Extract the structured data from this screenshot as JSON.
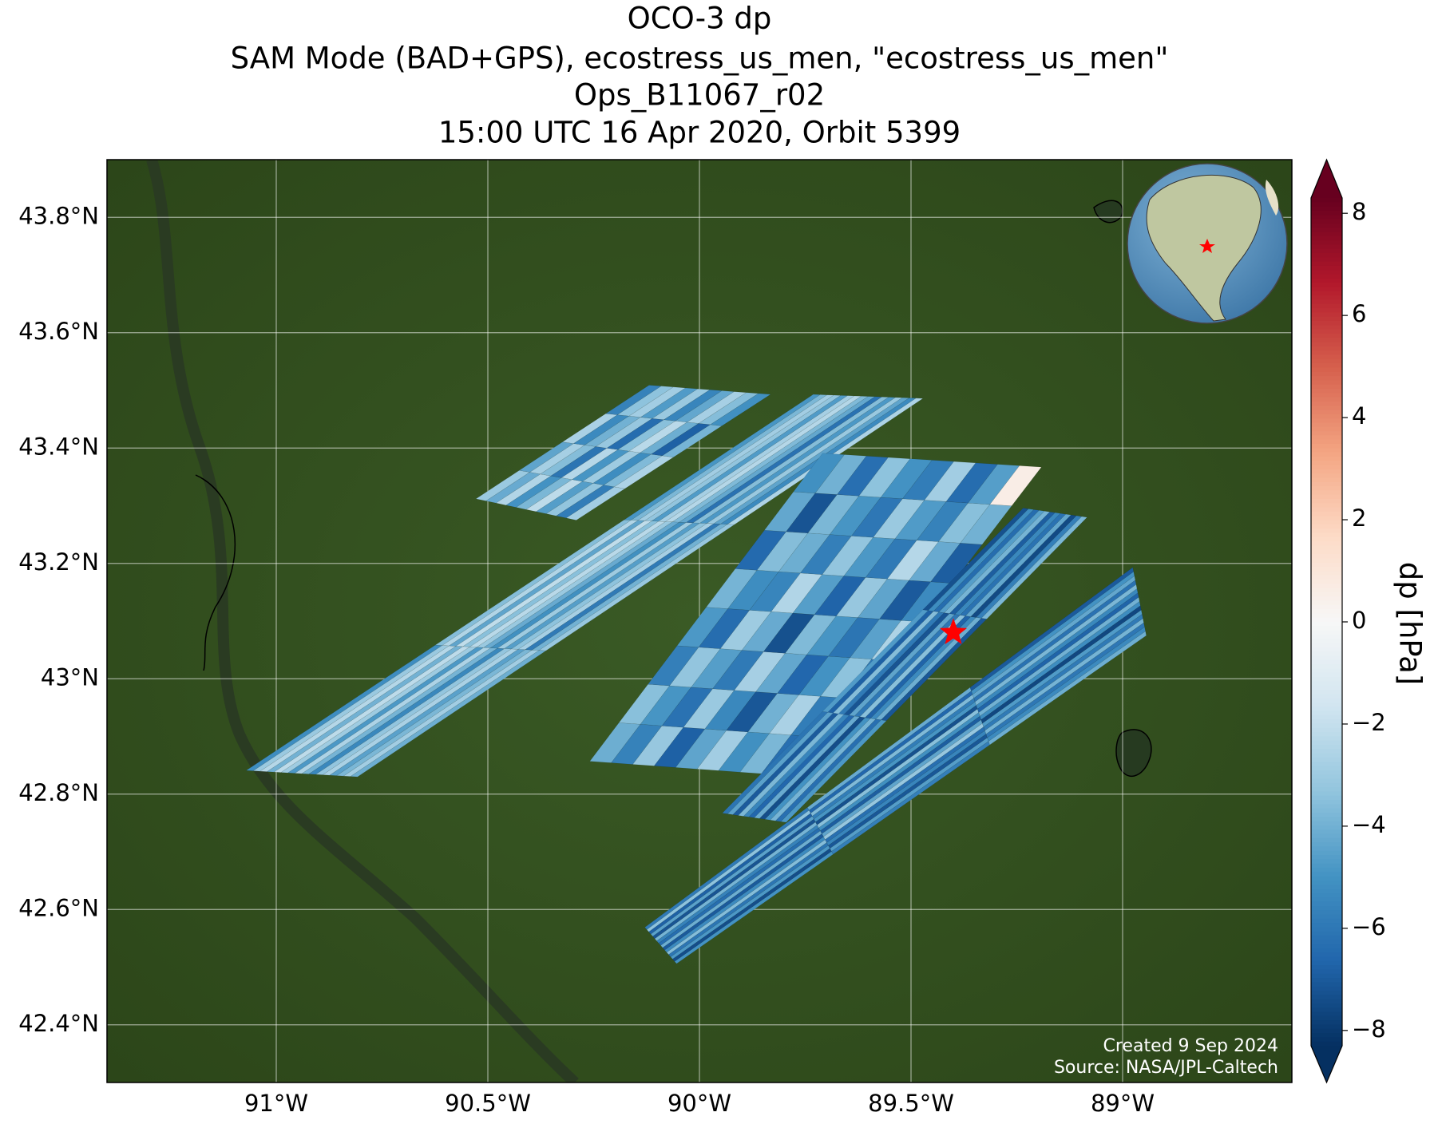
{
  "chart_data": {
    "type": "map",
    "title": [
      "OCO-3 dp",
      "SAM Mode (BAD+GPS), ecostress_us_men, \"ecostress_us_men\"",
      "Ops_B11067_r02",
      "15:00 UTC 16 Apr 2020, Orbit 5399"
    ],
    "xlim": [
      -91.4,
      -88.6
    ],
    "ylim": [
      42.3,
      43.9
    ],
    "xticks": [
      {
        "value": -91,
        "label": "91°W"
      },
      {
        "value": -90.5,
        "label": "90.5°W"
      },
      {
        "value": -90,
        "label": "90°W"
      },
      {
        "value": -89.5,
        "label": "89.5°W"
      },
      {
        "value": -89,
        "label": "89°W"
      }
    ],
    "yticks": [
      {
        "value": 42.4,
        "label": "42.4°N"
      },
      {
        "value": 42.6,
        "label": "42.6°N"
      },
      {
        "value": 42.8,
        "label": "42.8°N"
      },
      {
        "value": 43,
        "label": "43°N"
      },
      {
        "value": 43.2,
        "label": "43.2°N"
      },
      {
        "value": 43.4,
        "label": "43.4°N"
      },
      {
        "value": 43.6,
        "label": "43.6°N"
      },
      {
        "value": 43.8,
        "label": "43.8°N"
      }
    ],
    "grid": true,
    "site": {
      "lon": -89.4,
      "lat": 43.08,
      "color": "#ff0000"
    },
    "colorbar": {
      "label": "dp [hPa]",
      "lim": [
        -8.3,
        8.3
      ],
      "colormap": "RdBu_r",
      "ticks": [
        {
          "value": -8,
          "label": "−8"
        },
        {
          "value": -6,
          "label": "−6"
        },
        {
          "value": -4,
          "label": "−4"
        },
        {
          "value": -2,
          "label": "−2"
        },
        0,
        2,
        4,
        6,
        8
      ]
    },
    "credits": [
      "Created 9 Sep 2024",
      "Source: NASA/JPL-Caltech"
    ],
    "swaths": [
      {
        "corners": {
          "lon": [
            -90.528,
            -90.119,
            -89.832,
            -90.291
          ],
          "lat": [
            43.312,
            43.509,
            43.493,
            43.275
          ]
        },
        "values": [
          [
            -3.1,
            -4.2,
            -2.5,
            -5.0,
            -3.8,
            -2.2,
            -4.6,
            -3.3,
            -5.8,
            -2.9
          ],
          [
            -4.4,
            -2.8,
            -3.6,
            -6.1,
            -2.4,
            -4.9,
            -3.0,
            -5.2,
            -3.7,
            -2.6
          ],
          [
            -2.7,
            -5.3,
            -4.0,
            -3.2,
            -6.4,
            -3.5,
            -2.3,
            -4.1,
            -6.8,
            -3.9
          ],
          [
            -5.6,
            -3.4,
            -2.9,
            -4.7,
            -3.1,
            -5.5,
            -4.3,
            -2.8,
            -3.6,
            -5.1
          ]
        ]
      },
      {
        "corners": {
          "lon": [
            -91.071,
            -89.731,
            -89.472,
            -90.808
          ],
          "lat": [
            42.841,
            43.493,
            43.486,
            42.83
          ]
        },
        "values": [
          [
            -5.2,
            -3.1,
            -2.4,
            -4.0,
            -2.2,
            -3.0,
            -4.8,
            -2.6,
            -3.9,
            -5.4,
            -3.3,
            -2.7,
            -4.5,
            -3.8,
            -2.9,
            -4.1
          ],
          [
            -3.6,
            -2.5,
            -4.4,
            -2.1,
            -3.5,
            -2.3,
            -3.1,
            -4.2,
            -5.1,
            -3.0,
            -4.6,
            -3.4,
            -2.8,
            -5.9,
            -4.0,
            -3.2
          ],
          [
            -4.9,
            -3.8,
            -2.9,
            -3.3,
            -4.7,
            -2.8,
            -2.4,
            -3.7,
            -4.3,
            -6.2,
            -3.6,
            -4.8,
            -3.1,
            -4.4,
            -5.3,
            -2.6
          ]
        ]
      },
      {
        "corners": {
          "lon": [
            -90.259,
            -89.709,
            -89.192,
            -89.752
          ],
          "lat": [
            42.857,
            43.391,
            43.367,
            42.83
          ]
        },
        "values": [
          [
            -4.1,
            -5.6,
            -3.2,
            -6.8,
            -4.4,
            -2.9,
            -5.1,
            -3.8,
            -6.3,
            -4.7
          ],
          [
            -3.5,
            -4.9,
            -6.2,
            -3.1,
            -5.4,
            -7.1,
            -4.0,
            -2.7,
            -5.8,
            -3.6
          ],
          [
            -5.7,
            -3.3,
            -4.6,
            -5.9,
            -2.8,
            -4.3,
            -6.6,
            -5.0,
            -3.4,
            -6.0
          ],
          [
            -4.8,
            -6.4,
            -3.0,
            -4.2,
            -7.3,
            -3.7,
            -4.9,
            -6.1,
            -4.5,
            -2.6
          ],
          [
            -3.9,
            -5.2,
            -5.5,
            -2.5,
            -4.6,
            -6.7,
            -3.2,
            -4.4,
            -7.0,
            -5.3
          ],
          [
            -6.5,
            -3.6,
            -4.1,
            -5.7,
            -3.3,
            -4.8,
            -5.9,
            -2.4,
            -4.2,
            -6.9
          ],
          [
            -4.3,
            -7.2,
            -3.8,
            -4.9,
            -6.0,
            -3.1,
            -4.7,
            -5.6,
            -3.5,
            -4.0
          ],
          [
            -5.1,
            -4.0,
            -6.3,
            -3.4,
            -5.0,
            -5.8,
            -2.9,
            -6.4,
            -4.6,
            0.6
          ]
        ]
      },
      {
        "corners": {
          "lon": [
            -89.946,
            -89.235,
            -89.084,
            -89.795
          ],
          "lat": [
            42.767,
            43.296,
            43.28,
            42.751
          ]
        },
        "values": [
          [
            -6.1,
            -4.5,
            -7.0,
            -3.8,
            -5.5,
            -6.6,
            -4.2,
            -7.4,
            -5.0,
            -3.9,
            -6.3,
            -4.8
          ],
          [
            -4.7,
            -6.8,
            -3.6,
            -5.9,
            -7.2,
            -4.4,
            -6.0,
            -3.5,
            -6.7,
            -5.3,
            -4.1,
            -7.1
          ],
          [
            -7.3,
            -5.2,
            -6.4,
            -4.6,
            -3.9,
            -6.9,
            -5.4,
            -6.2,
            -4.3,
            -7.5,
            -5.7,
            -3.8
          ]
        ]
      },
      {
        "corners": {
          "lon": [
            -90.129,
            -88.976,
            -88.944,
            -90.054
          ],
          "lat": [
            42.569,
            43.193,
            43.075,
            42.506
          ]
        },
        "values": [
          [
            -5.9,
            -3.4,
            -6.8,
            -4.5,
            -7.2,
            -3.9,
            -5.6,
            -6.4,
            -4.1,
            -7.0,
            -5.3,
            -3.6,
            -6.1,
            -4.8,
            -7.4,
            -5.0
          ],
          [
            -4.2,
            -6.6,
            -3.7,
            -5.8,
            -4.9,
            -7.3,
            -3.5,
            -5.1,
            -6.9,
            -4.4,
            -3.2,
            -6.3,
            -5.5,
            -7.1,
            -4.6,
            -5.7
          ],
          [
            -7.0,
            -5.0,
            -4.3,
            -6.2,
            -3.8,
            -5.4,
            -6.7,
            -4.0,
            -5.2,
            -7.6,
            -4.7,
            -5.9,
            -3.9,
            -6.0,
            -5.3,
            -4.1
          ]
        ]
      }
    ]
  }
}
